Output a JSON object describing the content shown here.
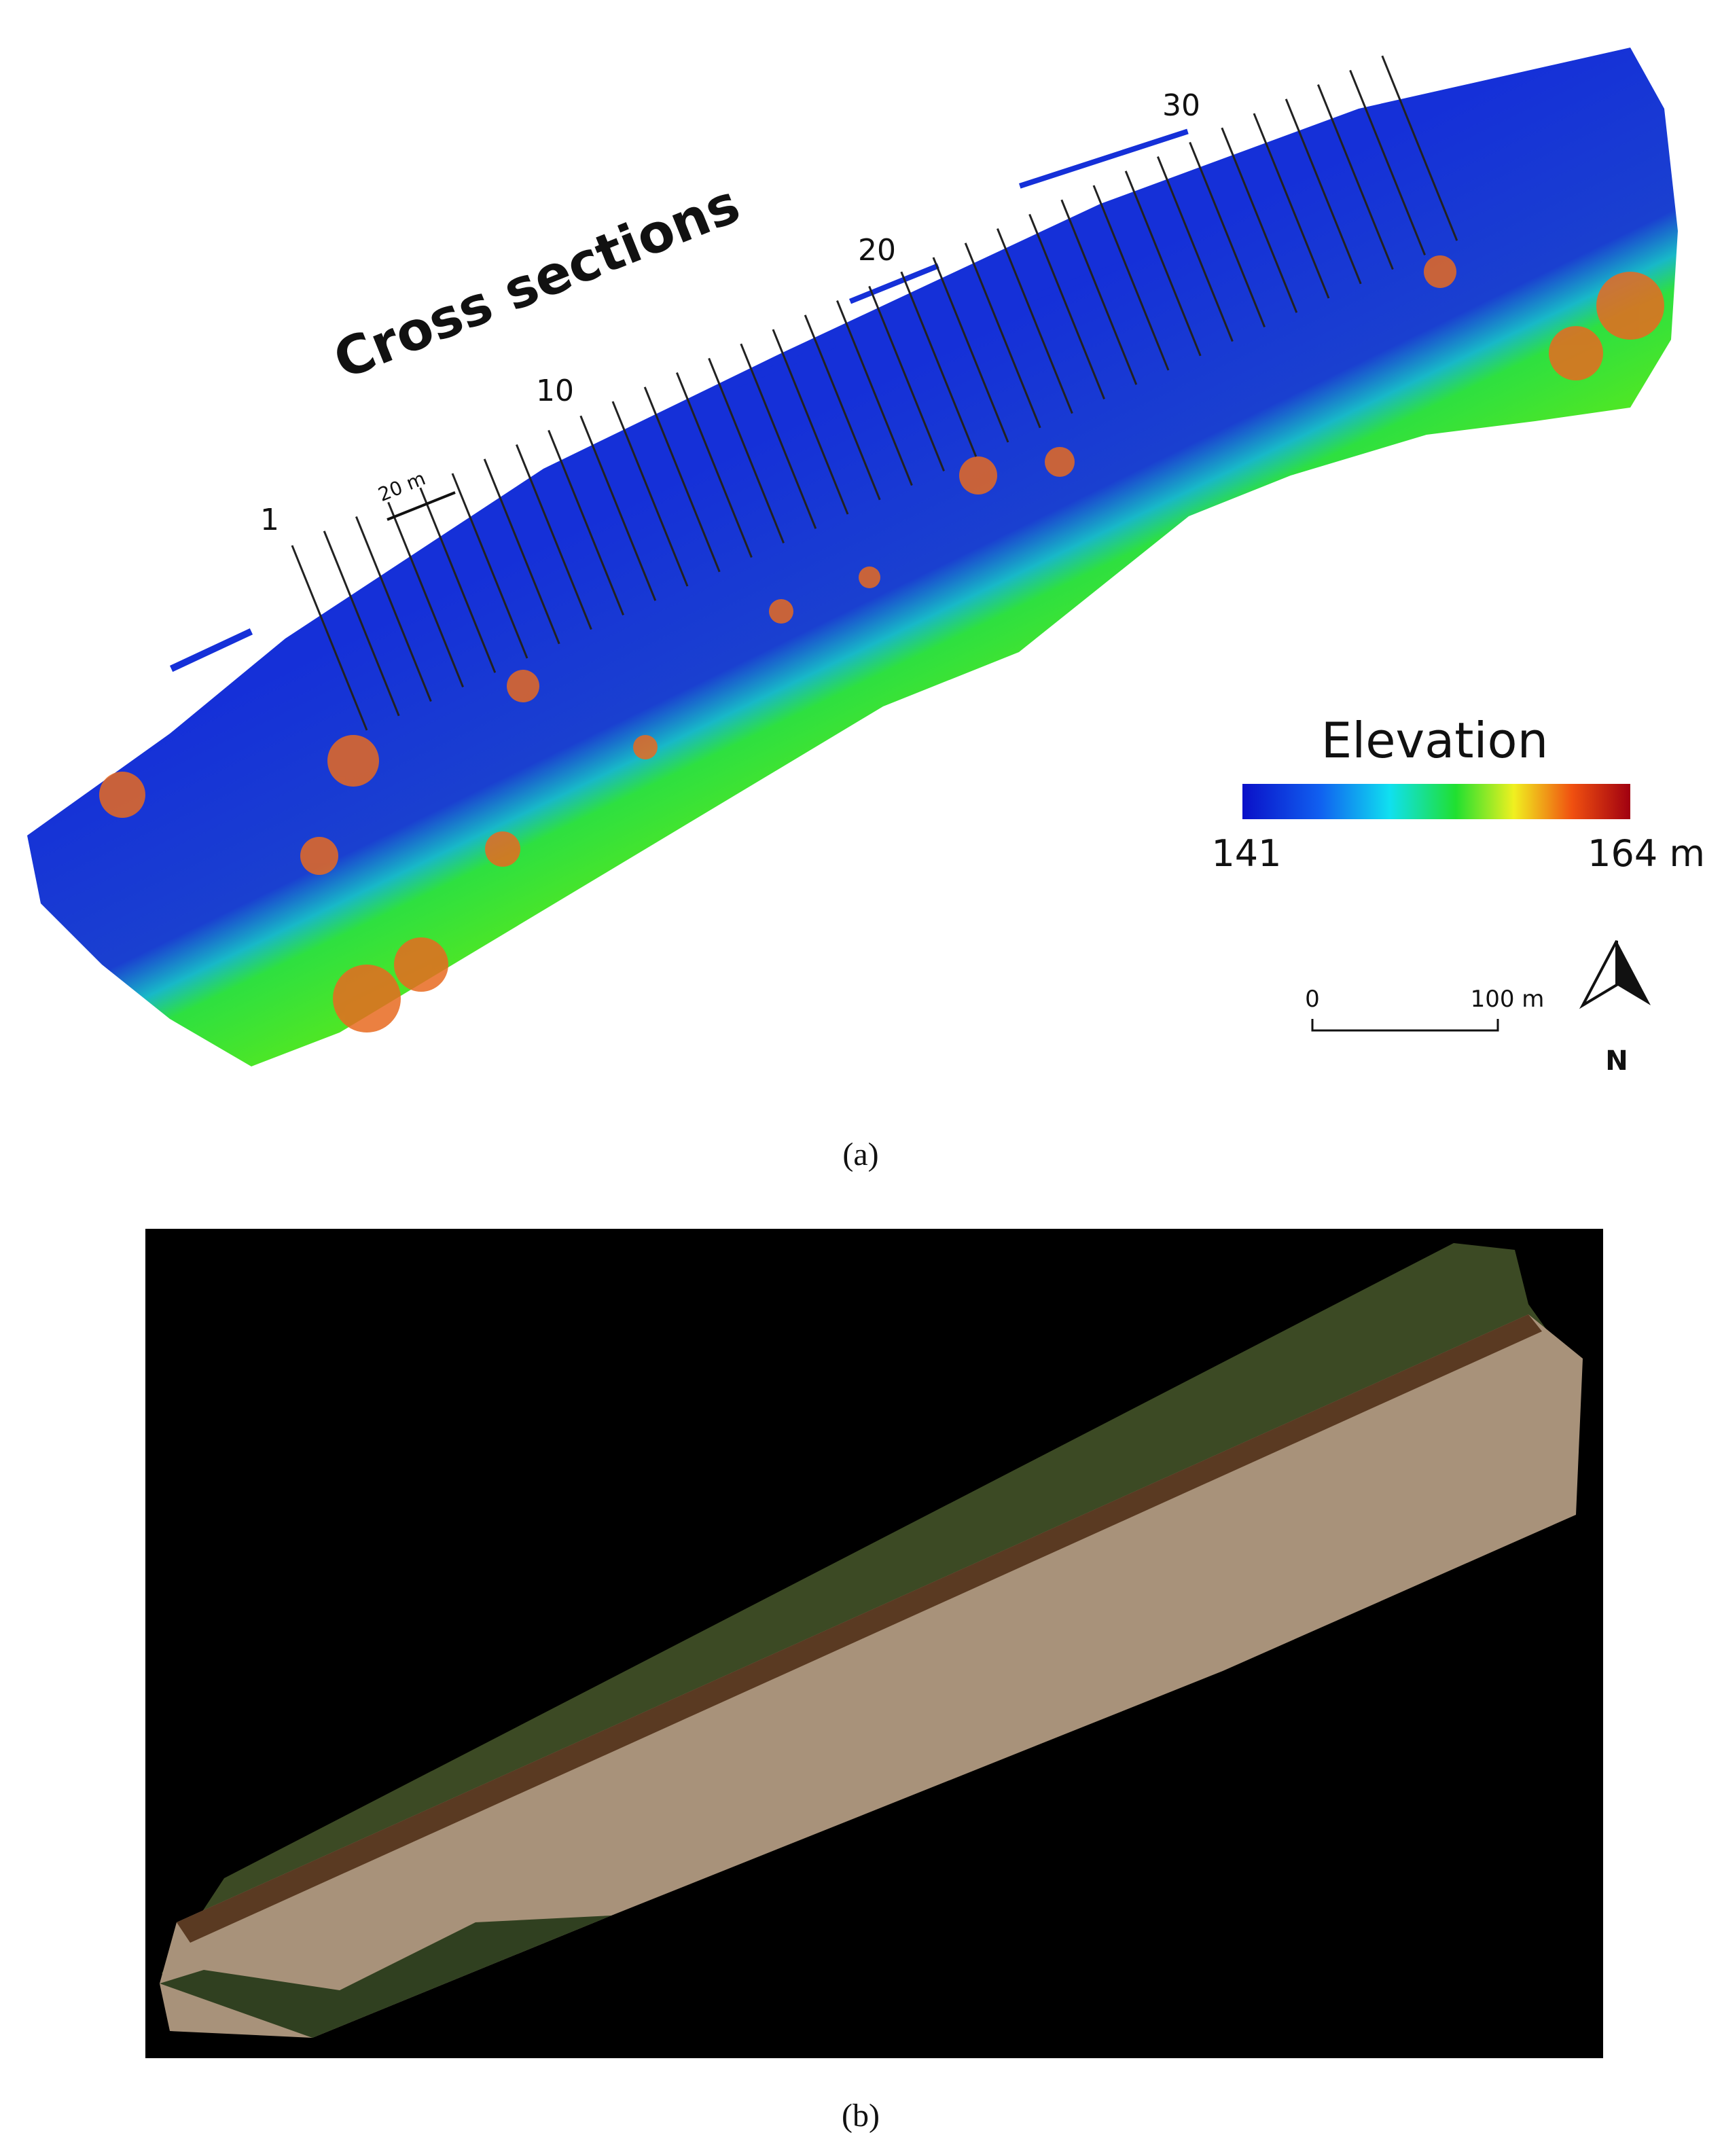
{
  "panel_a": {
    "title": "Cross sections",
    "section_labels": [
      "1",
      "10",
      "20",
      "30"
    ],
    "spacing_label": "20 m",
    "legend": {
      "title": "Elevation",
      "min_label": "141",
      "max_label": "164 m"
    },
    "scale_bar": {
      "start_label": "0",
      "end_label": "100 m"
    },
    "north_label": "N",
    "caption": "(a)"
  },
  "panel_b": {
    "caption": "(b)"
  }
}
